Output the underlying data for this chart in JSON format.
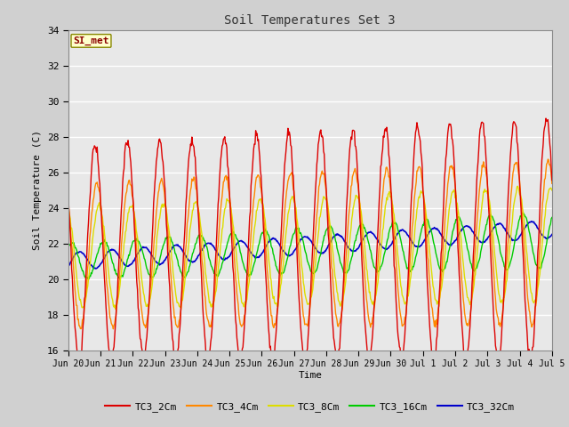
{
  "title": "Soil Temperatures Set 3",
  "xlabel": "Time",
  "ylabel": "Soil Temperature (C)",
  "ylim": [
    16,
    34
  ],
  "yticks": [
    16,
    18,
    20,
    22,
    24,
    26,
    28,
    30,
    32,
    34
  ],
  "fig_bg": "#d0d0d0",
  "plot_bg": "#e8e8e8",
  "series": {
    "TC3_2Cm": {
      "color": "#dd0000",
      "linewidth": 1.0
    },
    "TC3_4Cm": {
      "color": "#ff8800",
      "linewidth": 1.0
    },
    "TC3_8Cm": {
      "color": "#dddd00",
      "linewidth": 1.0
    },
    "TC3_16Cm": {
      "color": "#00cc00",
      "linewidth": 1.0
    },
    "TC3_32Cm": {
      "color": "#0000cc",
      "linewidth": 1.2
    }
  },
  "xtick_labels": [
    "Jun 20",
    "Jun 21",
    "Jun 22",
    "Jun 23",
    "Jun 24",
    "Jun 25",
    "Jun 26",
    "Jun 27",
    "Jun 28",
    "Jun 29",
    "Jun 30",
    "Jul 1",
    "Jul 2",
    "Jul 3",
    "Jul 4",
    "Jul 5"
  ],
  "annotation_text": "SI_met",
  "annotation_color": "#8b0000",
  "annotation_bg": "#ffffcc",
  "annotation_border": "#888800"
}
